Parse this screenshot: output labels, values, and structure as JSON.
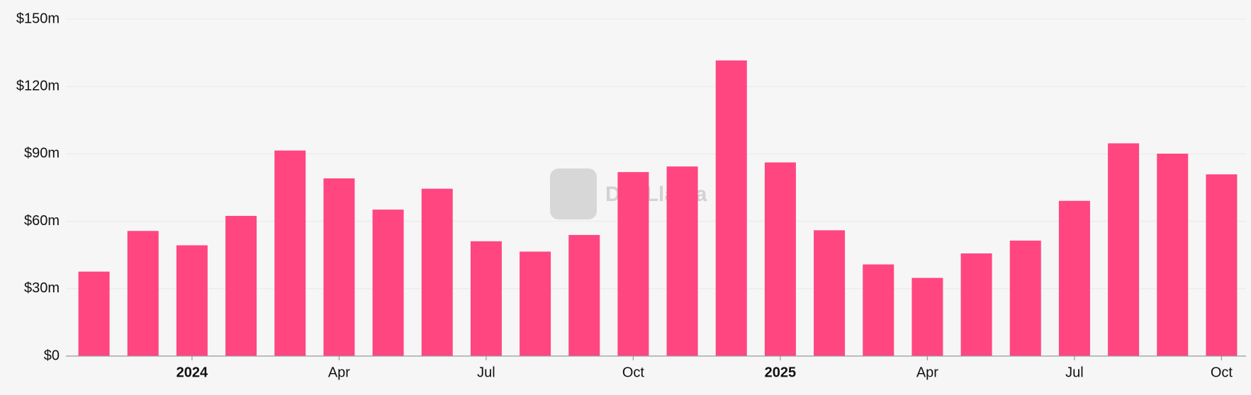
{
  "chart_data": {
    "type": "bar",
    "watermark": "DefiLlama",
    "categories": [
      null,
      null,
      "2024",
      null,
      null,
      "Apr",
      null,
      null,
      "Jul",
      null,
      null,
      "Oct",
      null,
      null,
      "2025",
      null,
      null,
      "Apr",
      null,
      null,
      "Jul",
      null,
      null,
      "Oct"
    ],
    "values": [
      37.6,
      55.7,
      49.3,
      62.4,
      91.5,
      79.1,
      65.2,
      74.5,
      51.1,
      46.5,
      53.9,
      81.9,
      84.4,
      131.6,
      86.2,
      56.0,
      40.8,
      34.8,
      45.7,
      51.4,
      69.1,
      94.7,
      90.1,
      80.9
    ],
    "color": "#ff4681",
    "ylim": [
      0,
      150
    ],
    "yticks": [
      {
        "value": 0,
        "label": "$0"
      },
      {
        "value": 30,
        "label": "$30m"
      },
      {
        "value": 60,
        "label": "$60m"
      },
      {
        "value": 90,
        "label": "$90m"
      },
      {
        "value": 120,
        "label": "$120m"
      },
      {
        "value": 150,
        "label": "$150m"
      }
    ],
    "grid": true
  }
}
